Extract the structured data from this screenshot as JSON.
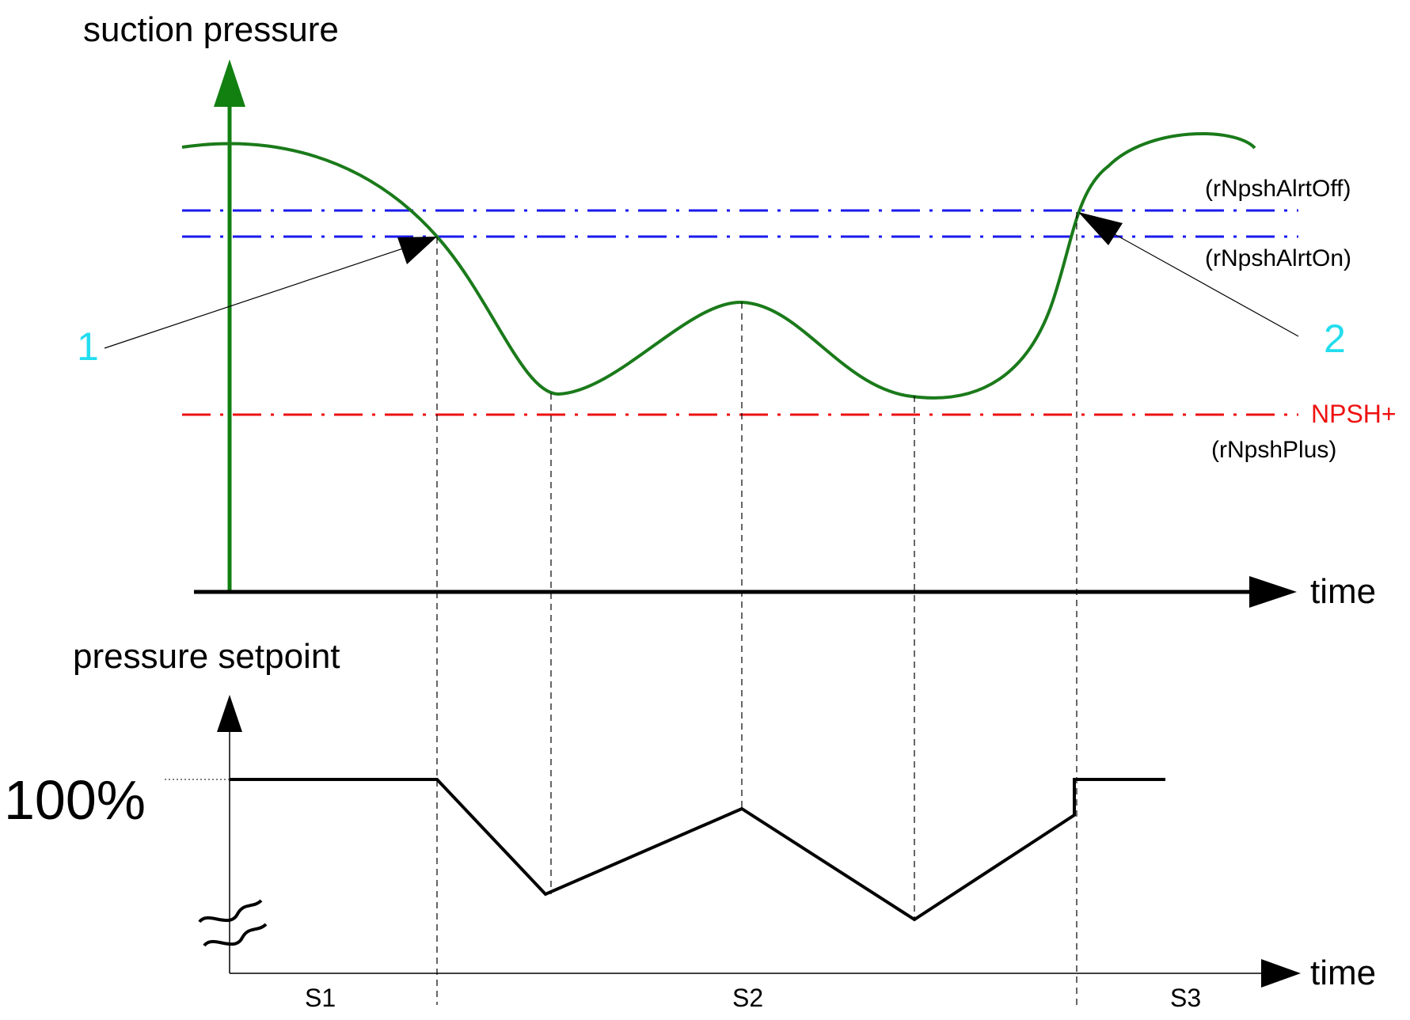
{
  "top": {
    "y_label": "suction pressure",
    "x_label": "time",
    "alert_off_label": "(rNpshAlrtOff)",
    "alert_on_label": "(rNpshAlrtOn)",
    "npsh_label": "NPSH+",
    "npsh_param_label": "(rNpshPlus)",
    "callout_1": "1",
    "callout_2": "2"
  },
  "bottom": {
    "y_label": "pressure setpoint",
    "x_label": "time",
    "level_label": "100%",
    "segments": [
      "S1",
      "S2",
      "S3"
    ]
  },
  "colors": {
    "curve": "#1a7a1a",
    "axis_top": "#118011",
    "alert_lines": "#1a1aee",
    "npsh_line": "#ee1111",
    "callout_text": "#22ddee",
    "ink": "#000000"
  }
}
